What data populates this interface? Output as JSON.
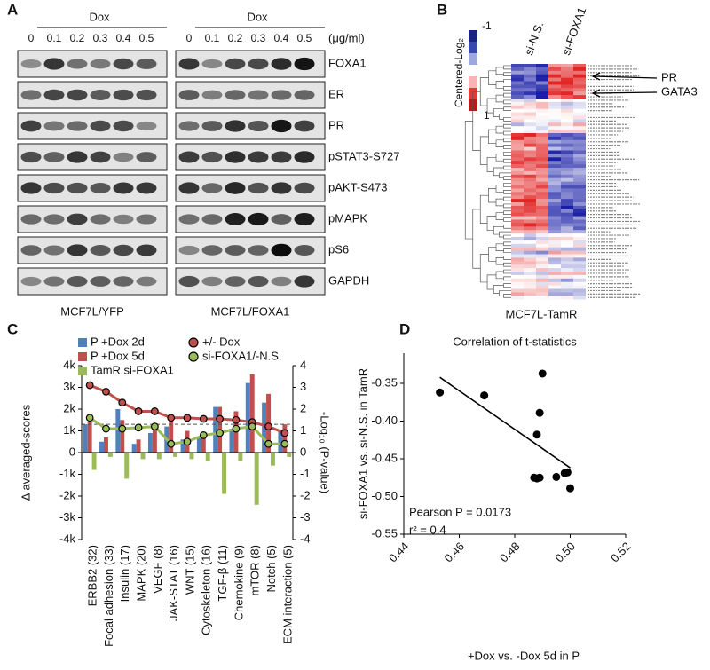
{
  "panel_a": {
    "letter": "A",
    "treatment": [
      "Dox",
      "Dox"
    ],
    "doses": [
      [
        "0",
        "0.1",
        "0.2",
        "0.3",
        "0.4",
        "0.5"
      ],
      [
        "0",
        "0.1",
        "0.2",
        "0.3",
        "0.4",
        "0.5"
      ]
    ],
    "unit": "(μg/ml)",
    "proteins": [
      "FOXA1",
      "ER",
      "PR",
      "pSTAT3-S727",
      "pAKT-S473",
      "pMAPK",
      "pS6",
      "GAPDH"
    ],
    "cell_lines": [
      "MCF7L/YFP",
      "MCF7L/FOXA1"
    ]
  },
  "panel_b": {
    "letter": "B",
    "scale_min": "-1",
    "scale_max": "1",
    "scale_label": "Centered-Log₂",
    "columns": [
      "si-N.S.",
      "si-FOXA1"
    ],
    "markers": [
      "PR",
      "GATA3"
    ],
    "cell_line": "MCF7L-TamR"
  },
  "chart_data": [
    {
      "type": "combo",
      "panel": "C",
      "ylabel": "Δ averaged-scores",
      "y2label": "-Log₁₀ (P-value)",
      "categories": [
        "ERBB2 (32)",
        "Focal adhesion (33)",
        "Insulin (17)",
        "MAPK (20)",
        "VEGF (8)",
        "JAK-STAT (16)",
        "WNT (15)",
        "Cytoskeleton (16)",
        "TGF-β (11)",
        "Chemokine (9)",
        "mTOR (8)",
        "Notch (5)",
        "ECM interaction (5)"
      ],
      "series": [
        {
          "name": "P +Dox 2d",
          "kind": "bar",
          "color": "#4f81bd",
          "values": [
            1300,
            500,
            2000,
            400,
            900,
            1200,
            600,
            700,
            2100,
            1100,
            3200,
            2300,
            1000
          ]
        },
        {
          "name": "P +Dox 5d",
          "kind": "bar",
          "color": "#c0504d",
          "values": [
            1400,
            700,
            1500,
            600,
            1300,
            1500,
            1000,
            800,
            2100,
            1900,
            3600,
            2700,
            1300
          ]
        },
        {
          "name": "TamR si-FOXA1",
          "kind": "bar",
          "color": "#9bbb59",
          "values": [
            -800,
            -200,
            -1200,
            -300,
            -300,
            -200,
            -300,
            -400,
            -1900,
            -400,
            -2400,
            -600,
            -200
          ]
        },
        {
          "name": "+/- Dox",
          "kind": "line",
          "axis": "y2",
          "color": "#c0504d",
          "values": [
            3.1,
            2.8,
            2.3,
            1.9,
            1.9,
            1.6,
            1.6,
            1.55,
            1.55,
            1.5,
            1.4,
            1.2,
            0.9
          ]
        },
        {
          "name": "si-FOXA1/-N.S.",
          "kind": "line",
          "axis": "y2",
          "color": "#9bbb59",
          "values": [
            1.6,
            1.1,
            1.1,
            1.15,
            1.2,
            0.4,
            0.5,
            0.8,
            0.9,
            1.1,
            1.2,
            0.4,
            0.4
          ]
        }
      ],
      "threshold": 1.3,
      "ylim": [
        -4000,
        4000
      ],
      "yticks": [
        {
          "value": -4000,
          "label": "-4k"
        },
        {
          "value": -3000,
          "label": "-3k"
        },
        {
          "value": -2000,
          "label": "-2k"
        },
        {
          "value": -1000,
          "label": "-1k"
        },
        0,
        {
          "value": 1000,
          "label": "1k"
        },
        {
          "value": 2000,
          "label": "2k"
        },
        {
          "value": 3000,
          "label": "3k"
        },
        {
          "value": 4000,
          "label": "4k"
        }
      ],
      "y2lim": [
        -4,
        4
      ],
      "y2ticks": [
        -4,
        -3,
        -2,
        -1,
        0,
        1,
        2,
        3,
        4
      ]
    },
    {
      "type": "scatter",
      "panel": "D",
      "title": "Correlation of t-statistics",
      "xlabel": "+Dox vs. -Dox 5d in P",
      "ylabel": "si-FOXA1 vs. si-N.S. in TamR",
      "x": [
        0.453,
        0.469,
        0.49,
        0.489,
        0.488,
        0.487,
        0.489,
        0.488,
        0.495,
        0.498,
        0.499,
        0.5
      ],
      "y": [
        -0.362,
        -0.366,
        -0.337,
        -0.389,
        -0.418,
        -0.475,
        -0.475,
        -0.476,
        -0.474,
        -0.469,
        -0.468,
        -0.489
      ],
      "color": "#000000",
      "trendline": {
        "x": [
          0.453,
          0.5
        ],
        "y": [
          -0.342,
          -0.462
        ]
      },
      "annotations": [
        "Pearson P = 0.0173",
        "r² = 0.4"
      ],
      "xlim": [
        0.44,
        0.52
      ],
      "xticks": [
        0.44,
        0.46,
        0.48,
        {
          "value": 0.5,
          "label": "0.50"
        },
        0.52
      ],
      "ylim": [
        -0.55,
        -0.31
      ],
      "yticks": [
        {
          "value": -0.55,
          "label": "-0.55"
        },
        {
          "value": -0.5,
          "label": "-0.50"
        },
        {
          "value": -0.45,
          "label": "-0.45"
        },
        {
          "value": -0.4,
          "label": "-0.40"
        },
        {
          "value": -0.35,
          "label": "-0.35"
        }
      ]
    }
  ]
}
